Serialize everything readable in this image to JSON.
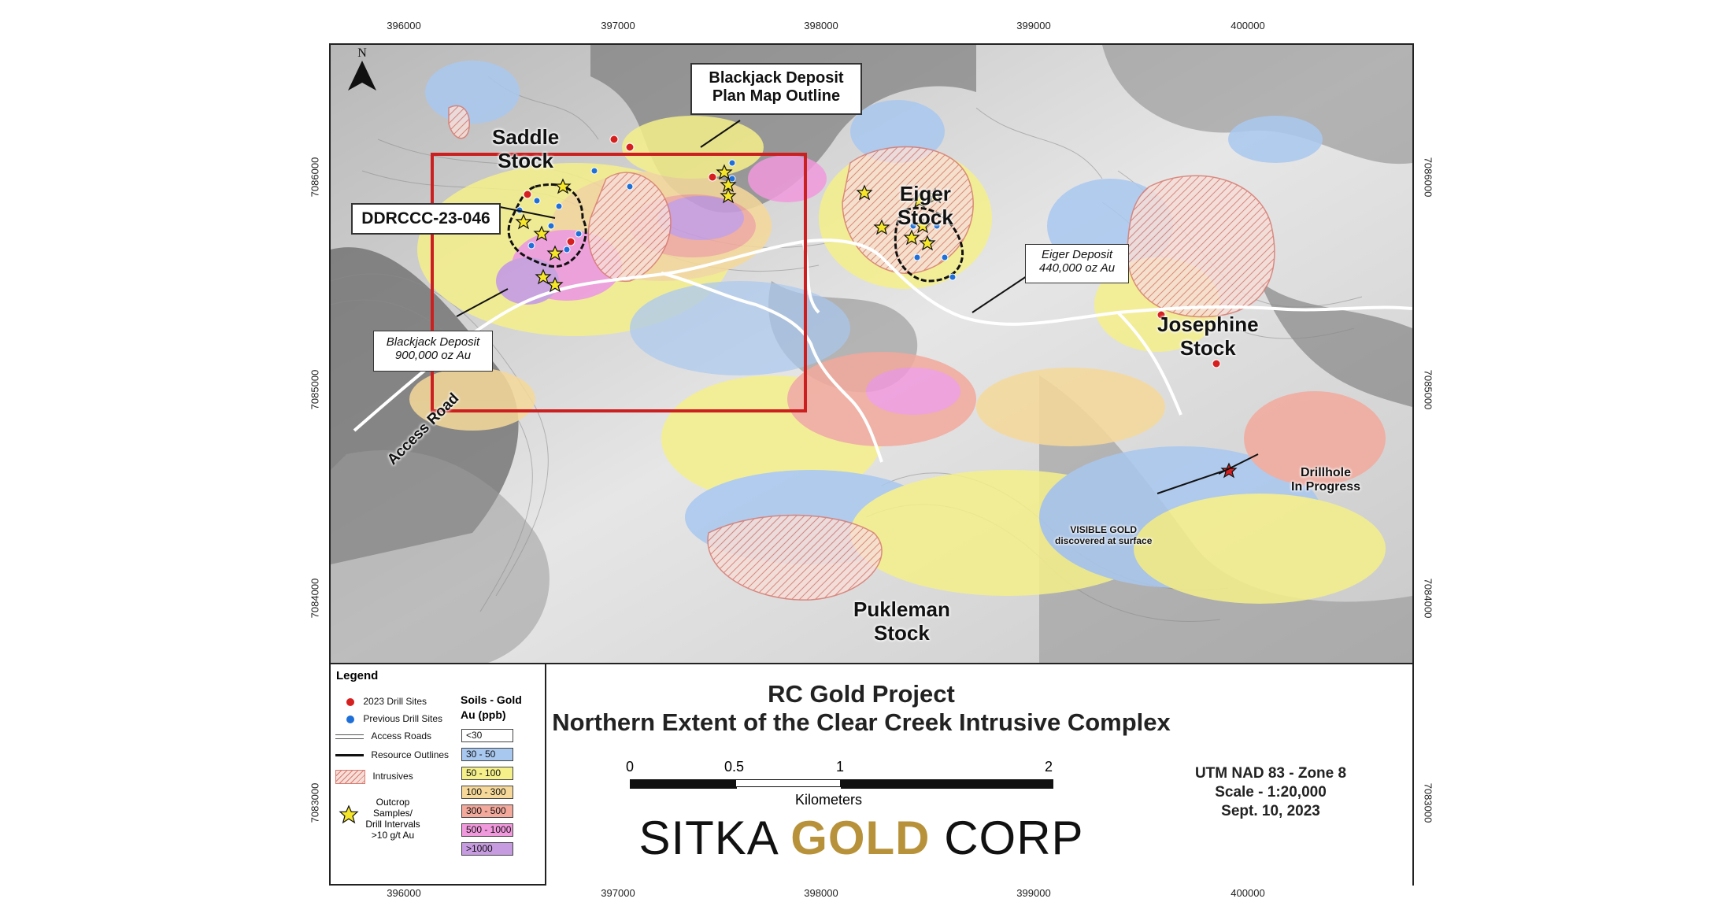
{
  "map": {
    "north_label": "N",
    "stocks": {
      "saddle": [
        "Saddle",
        "Stock"
      ],
      "eiger": [
        "Eiger",
        "Stock"
      ],
      "josephine": [
        "Josephine",
        "Stock"
      ],
      "pukleman": [
        "Pukleman",
        "Stock"
      ]
    },
    "callouts": {
      "blackjack_outline": [
        "Blackjack Deposit",
        "Plan Map Outline"
      ],
      "ddrccc": "DDRCCC-23-046",
      "blackjack_deposit": [
        "Blackjack Deposit",
        "900,000 oz Au"
      ],
      "eiger_deposit": [
        "Eiger Deposit",
        "440,000 oz Au"
      ]
    },
    "labels": {
      "access_road": "Access Road",
      "drillhole": [
        "Drillhole",
        "In Progress"
      ],
      "visible_gold": [
        "VISIBLE GOLD",
        "discovered at surface"
      ]
    },
    "easting_ticks": [
      "396000",
      "397000",
      "398000",
      "399000",
      "400000"
    ],
    "northing_ticks": [
      "7086000",
      "7085000",
      "7084000",
      "7083000"
    ]
  },
  "legend": {
    "title": "Legend",
    "items": {
      "drill_2023": "2023 Drill Sites",
      "drill_prev": "Previous Drill Sites",
      "access_roads": "Access Roads",
      "resource_outlines": "Resource Outlines",
      "intrusives": "Intrusives",
      "outcrop": [
        "Outcrop Samples/",
        "Drill Intervals",
        ">10 g/t Au"
      ]
    },
    "soils_title": [
      "Soils - Gold",
      "Au (ppb)"
    ],
    "classes": [
      {
        "label": "<30",
        "color": "#ffffff"
      },
      {
        "label": "30 - 50",
        "color": "#a9c8f0"
      },
      {
        "label": "50 - 100",
        "color": "#f5f08a"
      },
      {
        "label": "100 - 300",
        "color": "#f6d99a"
      },
      {
        "label": "300 - 500",
        "color": "#f3a99c"
      },
      {
        "label": "500 - 1000",
        "color": "#f199dd"
      },
      {
        "label": ">1000",
        "color": "#c79be0"
      }
    ],
    "colors": {
      "drill_2023": "#d62020",
      "drill_prev": "#1e6fd8",
      "star": "#f5e62a",
      "frame_red": "#cc1f1f"
    }
  },
  "title_block": {
    "title": "RC Gold Project",
    "subtitle": "Northern Extent of the Clear Creek Intrusive Complex",
    "scale_ticks": [
      "0",
      "0.5",
      "1",
      "2"
    ],
    "scale_units": "Kilometers",
    "projection": "UTM NAD 83 - Zone 8",
    "scale": "Scale - 1:20,000",
    "date": "Sept. 10, 2023",
    "company": {
      "part1": "SITKA",
      "part2": "GOLD",
      "part3": "CORP"
    }
  }
}
